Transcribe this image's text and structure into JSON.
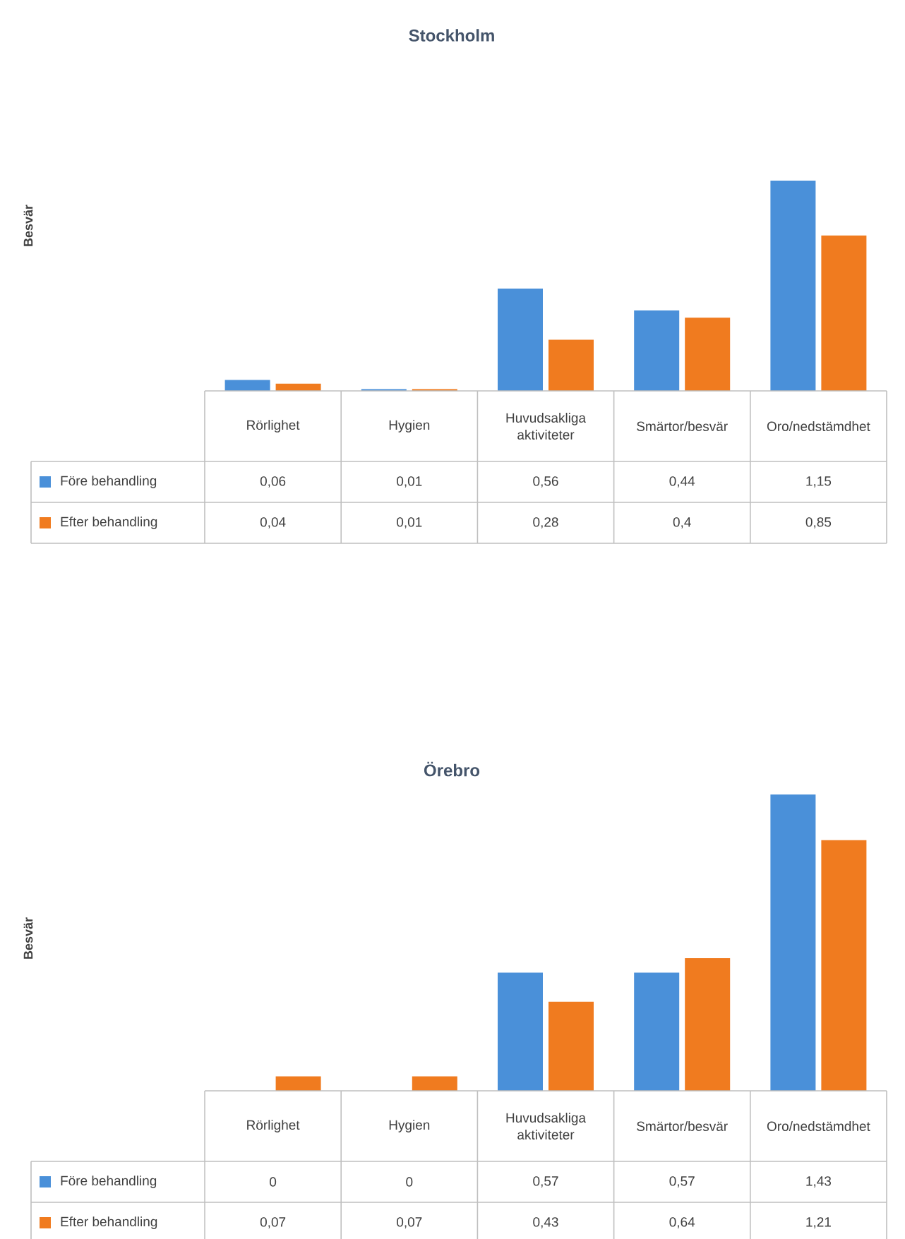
{
  "chart_data": [
    {
      "type": "bar",
      "title": "Stockholm",
      "ylabel": "Besvär",
      "categories": [
        "Rörlighet",
        "Hygien",
        "Huvudsakliga aktiviteter",
        "Smärtor/besvär",
        "Oro/nedstämdhet"
      ],
      "legend": "bottom",
      "series": [
        {
          "name": "Före behandling",
          "color": "#4a90d9",
          "values": [
            0.06,
            0.01,
            0.56,
            0.44,
            1.15
          ],
          "value_labels": [
            "0,06",
            "0,01",
            "0,56",
            "0,44",
            "1,15"
          ]
        },
        {
          "name": "Efter behandling",
          "color": "#f07b1f",
          "values": [
            0.04,
            0.01,
            0.28,
            0.4,
            0.85
          ],
          "value_labels": [
            "0,04",
            "0,01",
            "0,28",
            "0,4",
            "0,85"
          ]
        }
      ]
    },
    {
      "type": "bar",
      "title": "Örebro",
      "ylabel": "Besvär",
      "categories": [
        "Rörlighet",
        "Hygien",
        "Huvudsakliga aktiviteter",
        "Smärtor/besvär",
        "Oro/nedstämdhet"
      ],
      "legend": "bottom",
      "series": [
        {
          "name": "Före behandling",
          "color": "#4a90d9",
          "values": [
            0,
            0,
            0.57,
            0.57,
            1.43
          ],
          "value_labels": [
            "0",
            "0",
            "0,57",
            "0,57",
            "1,43"
          ]
        },
        {
          "name": "Efter behandling",
          "color": "#f07b1f",
          "values": [
            0.07,
            0.07,
            0.43,
            0.64,
            1.21
          ],
          "value_labels": [
            "0,07",
            "0,07",
            "0,43",
            "0,64",
            "1,21"
          ]
        }
      ]
    }
  ]
}
